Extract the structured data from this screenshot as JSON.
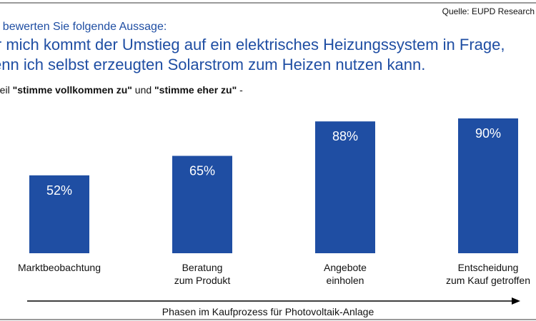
{
  "source": "Quelle: EUPD Research",
  "question_intro": "te bewerten Sie folgende Aussage:",
  "statement_lines": [
    "ir mich kommt der Umstieg auf ein elektrisches Heizungssystem in Frage,",
    "enn ich selbst erzeugten Solarstrom zum Heizen nutzen kann."
  ],
  "share_prefix": "nteil ",
  "share_term1": "\"stimme vollkommen zu\"",
  "share_and": " und ",
  "share_term2": "\"stimme eher zu\"",
  "share_suffix": " -",
  "colors": {
    "bar": "#1f4ea3",
    "title": "#1f4ea3",
    "label_on_bar": "#ffffff"
  },
  "chart_data": {
    "type": "bar",
    "categories": [
      [
        "Marktbeobachtung"
      ],
      [
        "Beratung",
        "zum Produkt"
      ],
      [
        "Angebote",
        "einholen"
      ],
      [
        "Entscheidung",
        "zum Kauf getroffen"
      ]
    ],
    "values": [
      52,
      65,
      88,
      90
    ],
    "value_labels": [
      "52%",
      "65%",
      "88%",
      "90%"
    ],
    "unit": "%",
    "xlabel": "Phasen im Kaufprozess für Photovoltaik-Anlage",
    "ylim": [
      0,
      100
    ],
    "grid": false,
    "legend": "none"
  }
}
